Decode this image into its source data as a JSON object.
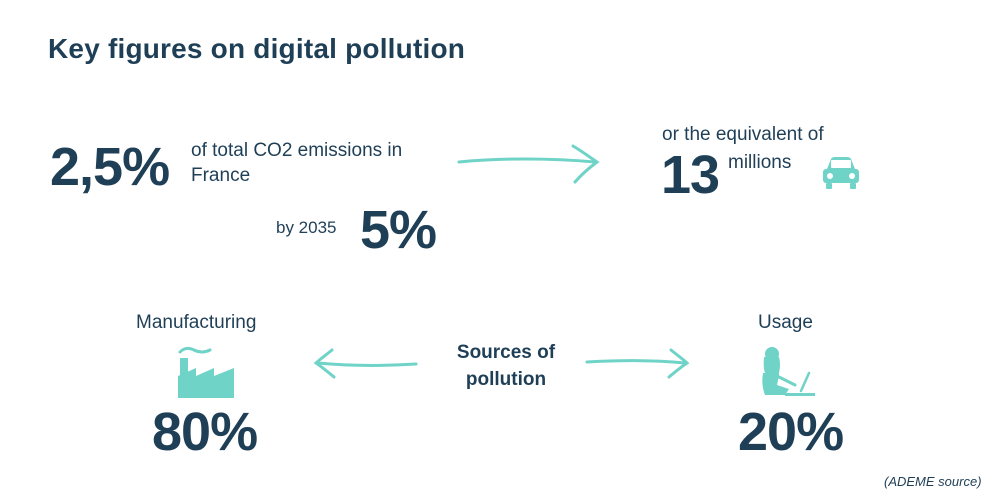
{
  "title": "Key figures on digital pollution",
  "emissions": {
    "value": "2,5%",
    "text": "of total CO2 emissions in France",
    "by_label": "by 2035",
    "by_value": "5%"
  },
  "cars": {
    "label": "or the equivalent of",
    "value": "13",
    "unit": "millions"
  },
  "sources": {
    "label": "Sources of pollution",
    "manufacturing": {
      "label": "Manufacturing",
      "value": "80%"
    },
    "usage": {
      "label": "Usage",
      "value": "20%"
    }
  },
  "source_note": "(ADEME source)",
  "colors": {
    "text": "#1f3f57",
    "accent": "#6fd3c7"
  },
  "icons": [
    "arrow-right-icon",
    "car-icon",
    "factory-icon",
    "arrow-left-icon",
    "person-laptop-icon"
  ]
}
